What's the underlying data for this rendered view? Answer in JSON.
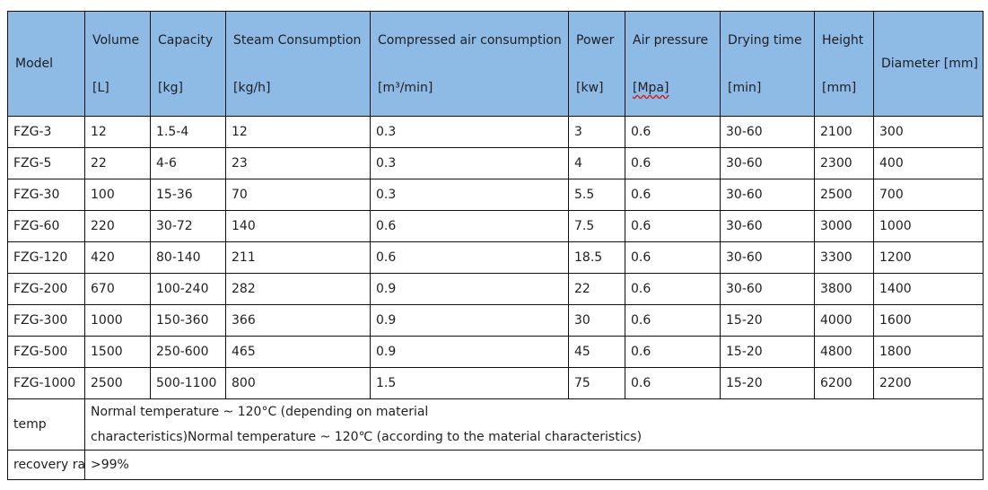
{
  "header": {
    "model": "Model",
    "columns": [
      {
        "name": "Volume",
        "unit": "[L]"
      },
      {
        "name": "Capacity",
        "unit": "[kg]"
      },
      {
        "name": "Steam Consumption",
        "unit": "[kg/h]"
      },
      {
        "name": "Compressed air consumption",
        "unit": "[m³/min]"
      },
      {
        "name": "Power",
        "unit": "[kw]"
      },
      {
        "name": "Air pressure",
        "unit": "[Mpa]"
      },
      {
        "name": "Drying time",
        "unit": "[min]"
      },
      {
        "name": "Height",
        "unit": "[mm]"
      }
    ],
    "diameter": "Diameter [mm]"
  },
  "rows": [
    [
      "FZG-3",
      "12",
      "1.5-4",
      "12",
      "0.3",
      "3",
      "0.6",
      "30-60",
      "2100",
      "300"
    ],
    [
      "FZG-5",
      "22",
      "4-6",
      "23",
      "0.3",
      "4",
      "0.6",
      "30-60",
      "2300",
      "400"
    ],
    [
      "FZG-30",
      "100",
      "15-36",
      "70",
      "0.3",
      "5.5",
      "0.6",
      "30-60",
      "2500",
      "700"
    ],
    [
      "FZG-60",
      "220",
      "30-72",
      "140",
      "0.6",
      "7.5",
      "0.6",
      "30-60",
      "3000",
      "1000"
    ],
    [
      "FZG-120",
      "420",
      "80-140",
      "211",
      "0.6",
      "18.5",
      "0.6",
      "30-60",
      "3300",
      "1200"
    ],
    [
      "FZG-200",
      "670",
      "100-240",
      "282",
      "0.9",
      "22",
      "0.6",
      "30-60",
      "3800",
      "1400"
    ],
    [
      "FZG-300",
      "1000",
      "150-360",
      "366",
      "0.9",
      "30",
      "0.6",
      "15-20",
      "4000",
      "1600"
    ],
    [
      "FZG-500",
      "1500",
      "250-600",
      "465",
      "0.9",
      "45",
      "0.6",
      "15-20",
      "4800",
      "1800"
    ],
    [
      "FZG-1000",
      "2500",
      "500-1100",
      "800",
      "1.5",
      "75",
      "0.6",
      "15-20",
      "6200",
      "2200"
    ]
  ],
  "temp": {
    "label": "temp",
    "line1": "Normal temperature ~ 120°C (depending on material",
    "line2": "characteristics)Normal temperature ~ 120℃ (according to the material characteristics)"
  },
  "recovery": {
    "label": "recovery rate",
    "value": ">99%"
  },
  "colors": {
    "header_bg": "#8ebae6",
    "border": "#111111"
  }
}
